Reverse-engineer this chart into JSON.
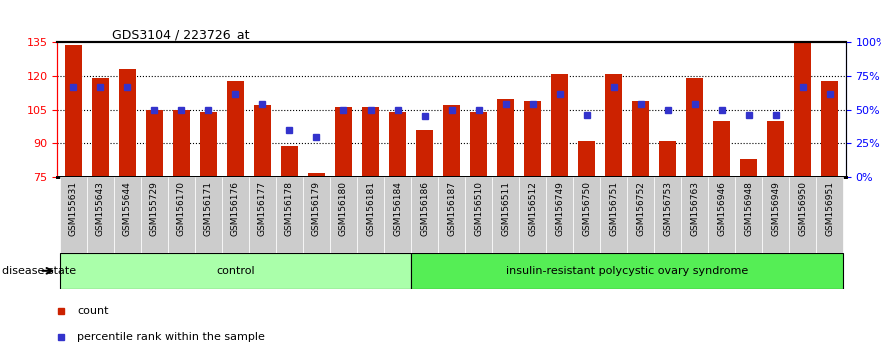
{
  "title": "GDS3104 / 223726_at",
  "samples": [
    "GSM155631",
    "GSM155643",
    "GSM155644",
    "GSM155729",
    "GSM156170",
    "GSM156171",
    "GSM156176",
    "GSM156177",
    "GSM156178",
    "GSM156179",
    "GSM156180",
    "GSM156181",
    "GSM156184",
    "GSM156186",
    "GSM156187",
    "GSM156510",
    "GSM156511",
    "GSM156512",
    "GSM156749",
    "GSM156750",
    "GSM156751",
    "GSM156752",
    "GSM156753",
    "GSM156763",
    "GSM156946",
    "GSM156948",
    "GSM156949",
    "GSM156950",
    "GSM156951"
  ],
  "bar_values": [
    134,
    119,
    123,
    105,
    105,
    104,
    118,
    107,
    89,
    77,
    106,
    106,
    104,
    96,
    107,
    104,
    110,
    109,
    121,
    91,
    121,
    109,
    91,
    119,
    100,
    83,
    100,
    135,
    118
  ],
  "percentile_values": [
    67,
    67,
    67,
    50,
    50,
    50,
    62,
    54,
    35,
    30,
    50,
    50,
    50,
    45,
    50,
    50,
    54,
    54,
    62,
    46,
    67,
    54,
    50,
    54,
    50,
    46,
    46,
    67,
    62
  ],
  "control_count": 13,
  "disease_count": 16,
  "ylim_left": [
    75,
    135
  ],
  "ylim_right": [
    0,
    100
  ],
  "yticks_left": [
    75,
    90,
    105,
    120,
    135
  ],
  "yticks_right": [
    0,
    25,
    50,
    75,
    100
  ],
  "ytick_labels_right": [
    "0%",
    "25%",
    "50%",
    "75%",
    "100%"
  ],
  "bar_color": "#CC2200",
  "percentile_color": "#3333CC",
  "control_label": "control",
  "disease_label": "insulin-resistant polycystic ovary syndrome",
  "legend_count_label": "count",
  "legend_percentile_label": "percentile rank within the sample",
  "disease_state_label": "disease state",
  "control_bg": "#AAFFAA",
  "disease_bg": "#55EE55",
  "tick_area_bg": "#CCCCCC"
}
